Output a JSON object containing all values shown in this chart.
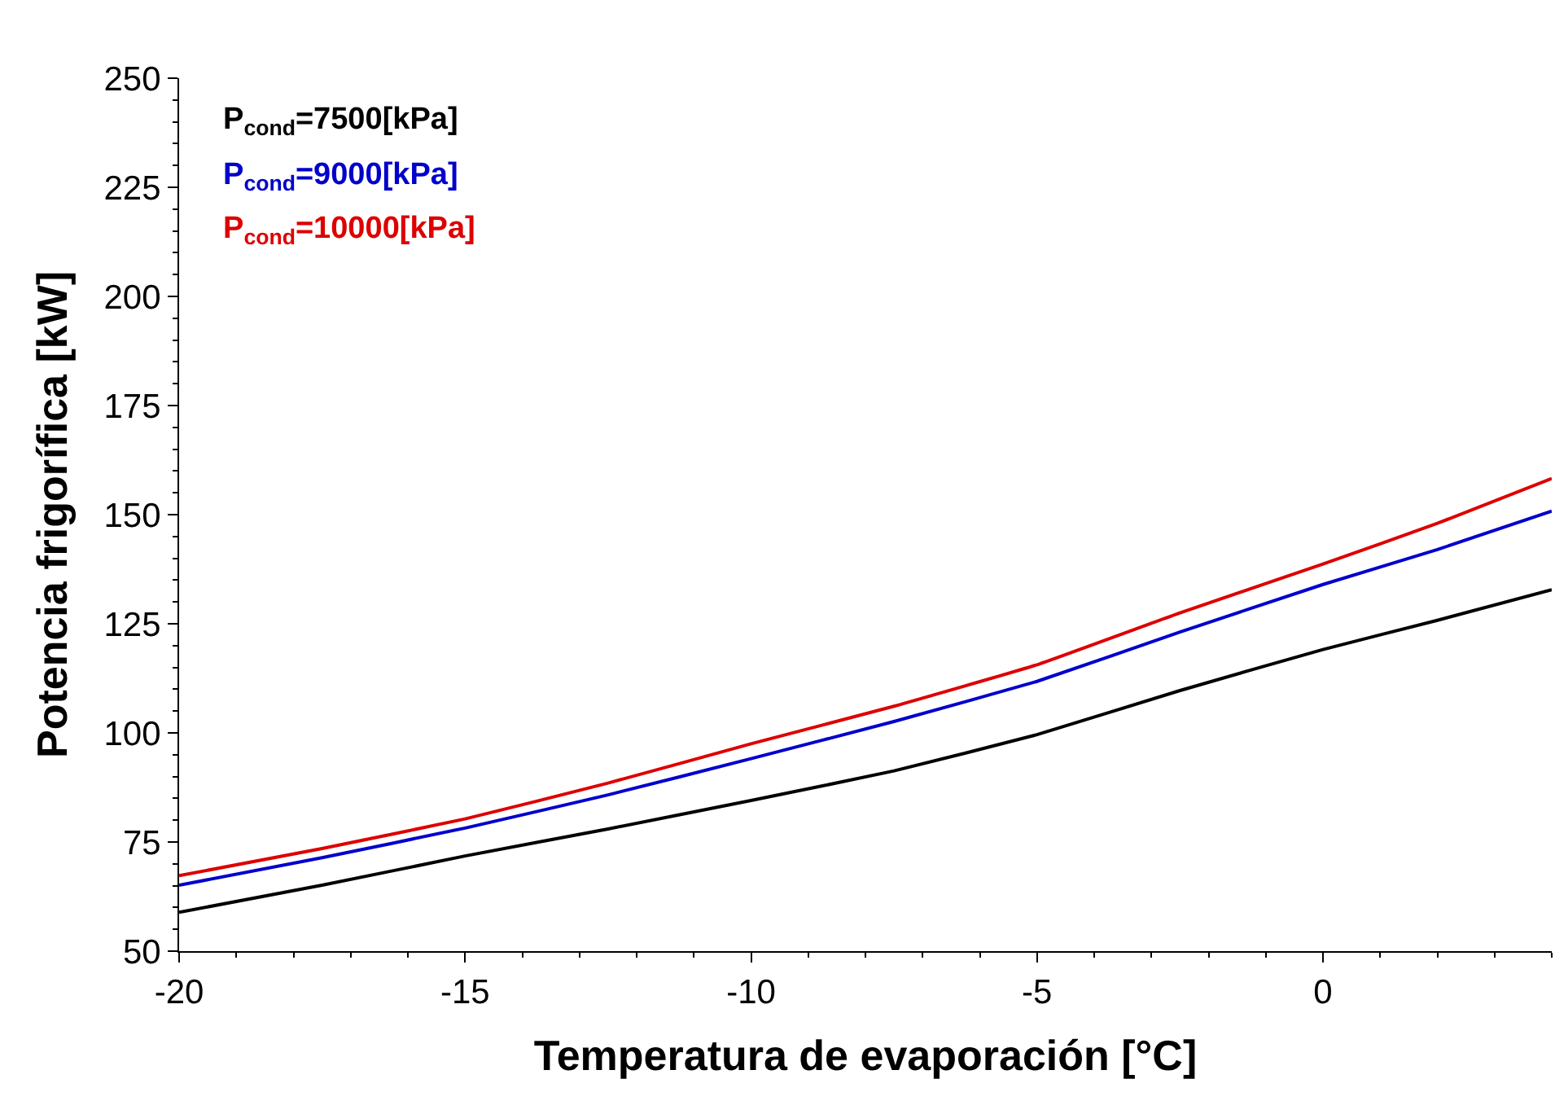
{
  "chart_data": {
    "type": "line",
    "xlabel": "Temperatura de evaporación [°C]",
    "ylabel": "Potencia frigorífica [kW]",
    "x": [
      -20,
      -17.5,
      -15,
      -12.5,
      -10,
      -7.5,
      -5,
      -2.5,
      0,
      2,
      4
    ],
    "xlim": [
      -20,
      4
    ],
    "xticks": [
      -20,
      -15,
      -10,
      -5,
      0
    ],
    "ylim": [
      50,
      250
    ],
    "yticks": [
      50,
      75,
      100,
      125,
      150,
      175,
      200,
      225,
      250
    ],
    "grid": false,
    "legend": "top left",
    "marker": "none",
    "line_style": "solid",
    "series": [
      {
        "name": "P$_{cond}$=7500[kPa]",
        "color": "#000000",
        "values": [
          58.9,
          65.1,
          71.8,
          78,
          84.5,
          91.3,
          99.6,
          109.7,
          119.1,
          125.8,
          132.8
        ]
      },
      {
        "name": "P$_{cond}$=9000[kPa]",
        "color": "#0000cc",
        "values": [
          65.1,
          71.4,
          78.2,
          85.8,
          94.1,
          102.6,
          111.8,
          123.1,
          134,
          142,
          150.8
        ]
      },
      {
        "name": "P$_{cond}$=10000[kPa]",
        "color": "#dd0000",
        "values": [
          67.3,
          73.5,
          80.3,
          88.5,
          97.5,
          106.1,
          115.6,
          127.5,
          138.7,
          148,
          158.3
        ]
      }
    ]
  }
}
